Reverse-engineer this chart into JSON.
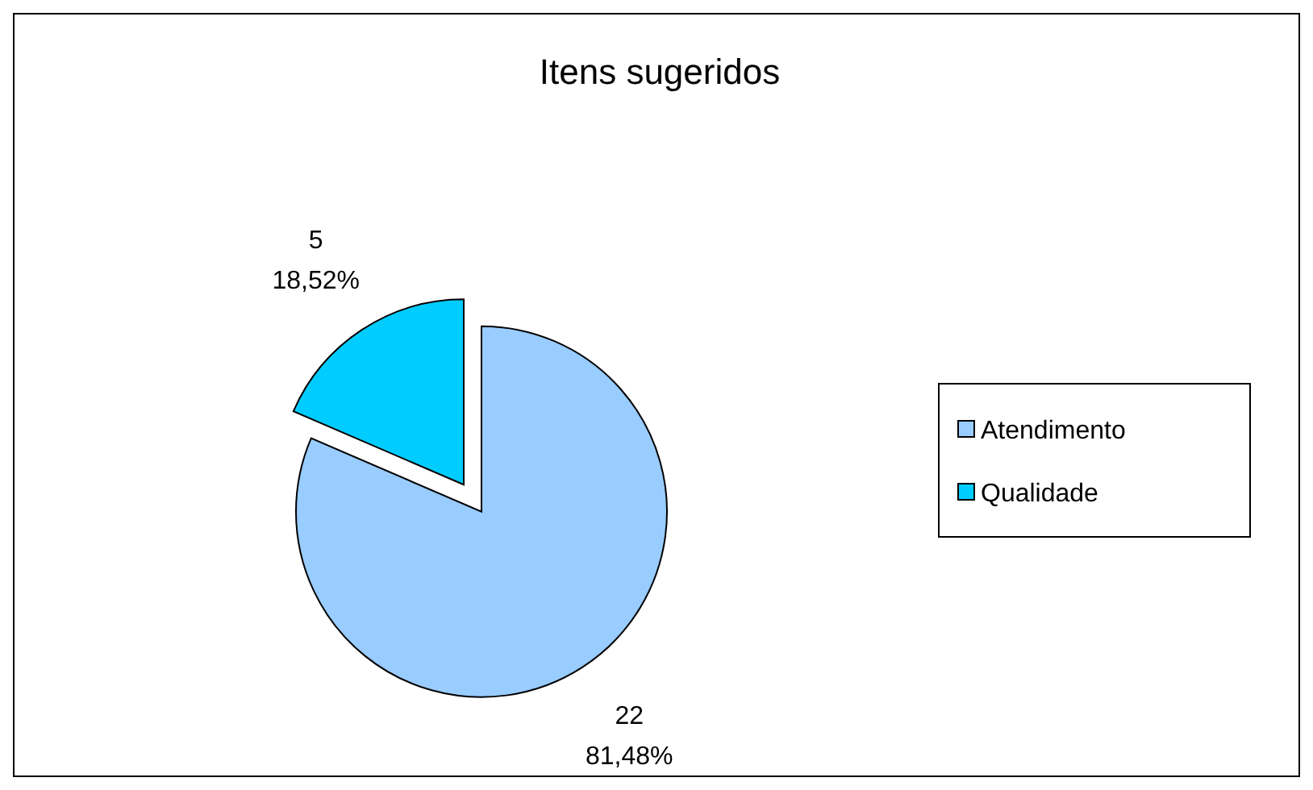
{
  "chart_data": {
    "type": "pie",
    "title": "Itens sugeridos",
    "categories": [
      "Atendimento",
      "Qualidade"
    ],
    "values": [
      22,
      5
    ],
    "colors": [
      "#99ccff",
      "#00ccff"
    ],
    "value_labels": [
      "22\n81,48%",
      "5\n18,52%"
    ],
    "legend": "right"
  }
}
